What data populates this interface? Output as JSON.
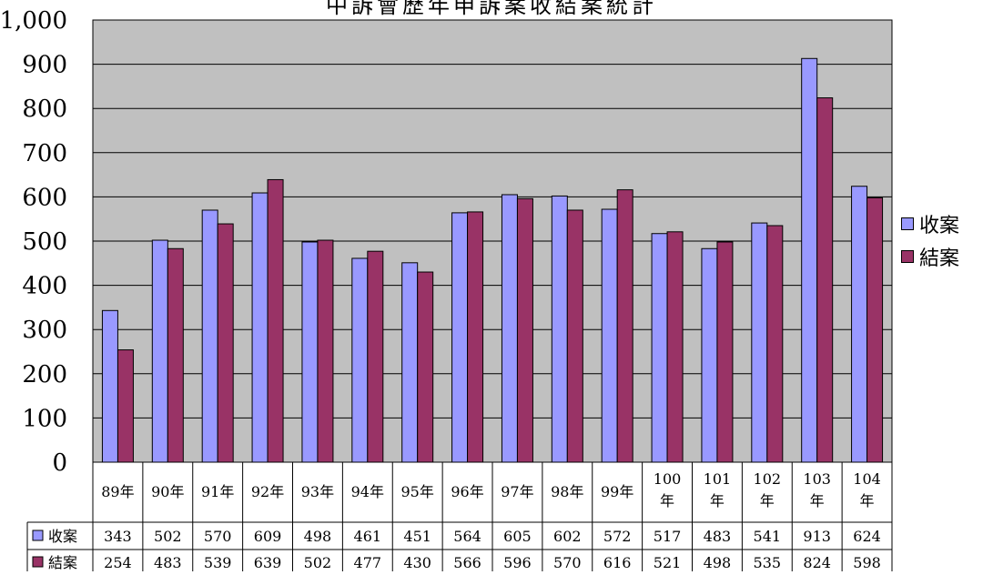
{
  "chart_data": {
    "type": "bar",
    "title": "中訴會歷年申訴案收結案統計",
    "xlabel": "",
    "ylabel": "",
    "ylim": [
      0,
      1000
    ],
    "yticks": [
      "0",
      "100",
      "200",
      "300",
      "400",
      "500",
      "600",
      "700",
      "800",
      "900",
      "1,000"
    ],
    "grid": true,
    "legend_position": "right",
    "categories": [
      "89年",
      "90年",
      "91年",
      "92年",
      "93年",
      "94年",
      "95年",
      "96年",
      "97年",
      "98年",
      "99年",
      "100年",
      "101年",
      "102年",
      "103年",
      "104年"
    ],
    "series": [
      {
        "name": "收案",
        "color": "#9999ff",
        "values": [
          343,
          502,
          570,
          609,
          498,
          461,
          451,
          564,
          605,
          602,
          572,
          517,
          483,
          541,
          913,
          624
        ]
      },
      {
        "name": "結案",
        "color": "#993366",
        "values": [
          254,
          483,
          539,
          639,
          502,
          477,
          430,
          566,
          596,
          570,
          616,
          521,
          498,
          535,
          824,
          598
        ]
      }
    ],
    "plot_background": "#c0c0c0",
    "data_table": true
  }
}
